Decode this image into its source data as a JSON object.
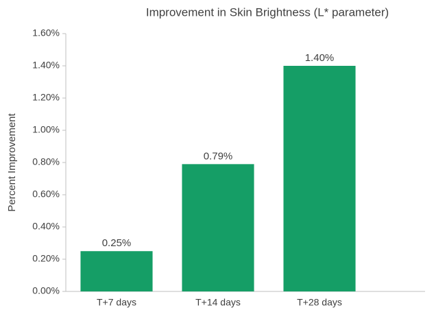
{
  "chart_data": {
    "type": "bar",
    "title": "Improvement in Skin Brightness (L* parameter)",
    "y_axis_label": "Percent Improvement",
    "categories": [
      "T+7 days",
      "T+14 days",
      "T+28 days"
    ],
    "values": [
      0.25,
      0.79,
      1.4
    ],
    "value_labels": [
      "0.25%",
      "0.79%",
      "1.40%"
    ],
    "color": "#159e66",
    "ylim": [
      0,
      1.6
    ],
    "yticks": [
      {
        "value": 0,
        "label": "0.00%"
      },
      {
        "value": 0.2,
        "label": "0.20%"
      },
      {
        "value": 0.4,
        "label": "0.40%"
      },
      {
        "value": 0.6,
        "label": "0.60%"
      },
      {
        "value": 0.8,
        "label": "0.80%"
      },
      {
        "value": 1.0,
        "label": "1.00%"
      },
      {
        "value": 1.2,
        "label": "1.20%"
      },
      {
        "value": 1.4,
        "label": "1.40%"
      },
      {
        "value": 1.6,
        "label": "1.60%"
      }
    ],
    "grid": false
  }
}
